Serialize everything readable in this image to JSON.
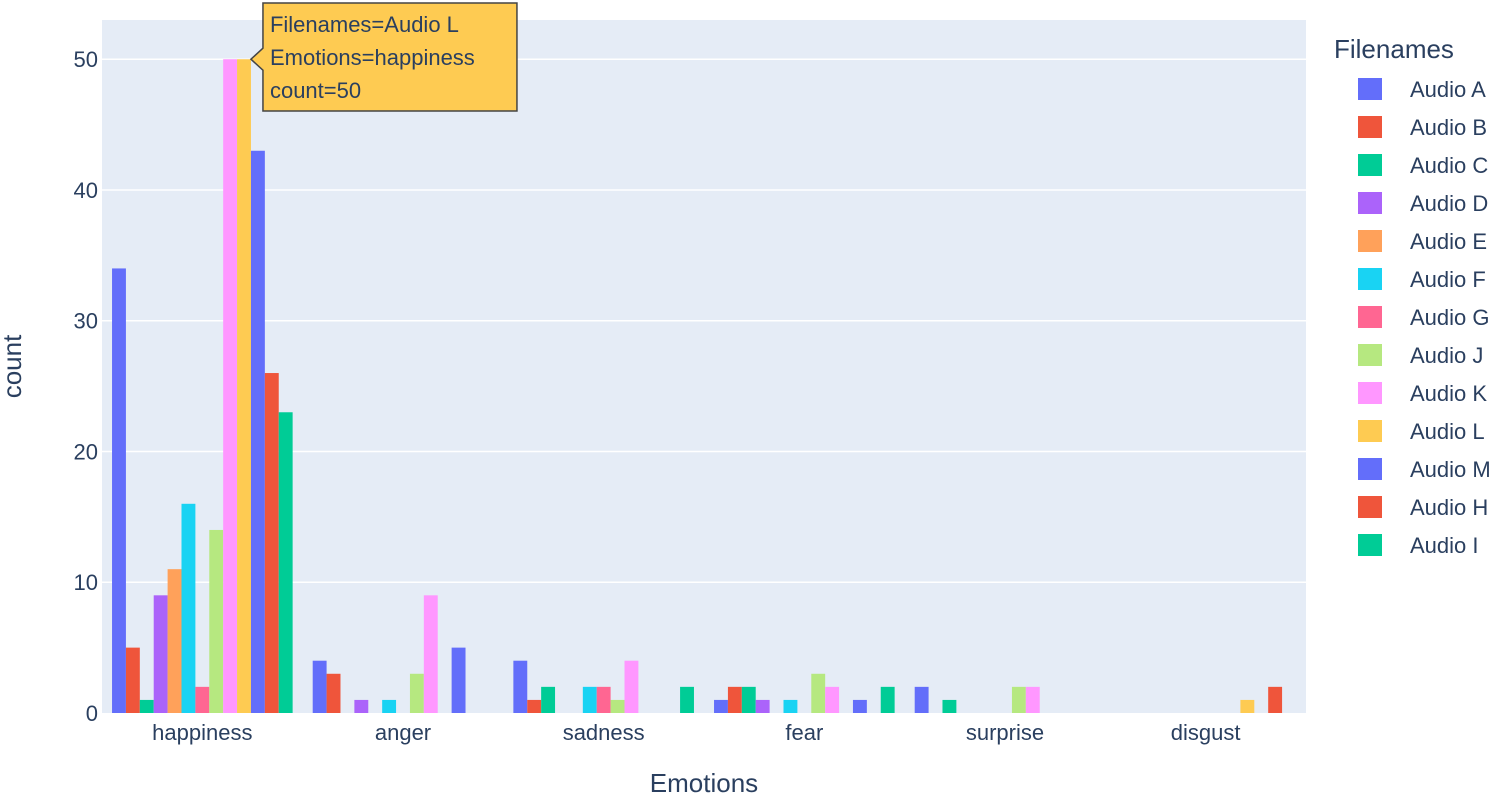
{
  "chart_data": {
    "type": "bar",
    "barmode": "group",
    "xlabel": "Emotions",
    "ylabel": "count",
    "ylim": [
      0,
      53
    ],
    "yticks": [
      0,
      10,
      20,
      30,
      40,
      50
    ],
    "grid": true,
    "legend_title": "Filenames",
    "legend_placement": "right",
    "categories": [
      "happiness",
      "anger",
      "sadness",
      "fear",
      "surprise",
      "disgust"
    ],
    "series": [
      {
        "name": "Audio A",
        "color": "#636efa",
        "values": [
          34,
          4,
          4,
          1,
          2,
          0
        ]
      },
      {
        "name": "Audio B",
        "color": "#EF553B",
        "values": [
          5,
          3,
          1,
          2,
          0,
          0
        ]
      },
      {
        "name": "Audio C",
        "color": "#00cc96",
        "values": [
          1,
          0,
          2,
          2,
          1,
          0
        ]
      },
      {
        "name": "Audio D",
        "color": "#ab63fa",
        "values": [
          9,
          1,
          0,
          1,
          0,
          0
        ]
      },
      {
        "name": "Audio E",
        "color": "#FFA15A",
        "values": [
          11,
          0,
          0,
          0,
          0,
          0
        ]
      },
      {
        "name": "Audio F",
        "color": "#19d3f3",
        "values": [
          16,
          1,
          2,
          1,
          0,
          0
        ]
      },
      {
        "name": "Audio G",
        "color": "#FF6692",
        "values": [
          2,
          0,
          2,
          0,
          0,
          0
        ]
      },
      {
        "name": "Audio J",
        "color": "#B6E880",
        "values": [
          14,
          3,
          1,
          3,
          2,
          0
        ]
      },
      {
        "name": "Audio K",
        "color": "#FF97FF",
        "values": [
          50,
          9,
          4,
          2,
          2,
          0
        ]
      },
      {
        "name": "Audio L",
        "color": "#FECB52",
        "values": [
          50,
          0,
          0,
          0,
          0,
          1
        ]
      },
      {
        "name": "Audio M",
        "color": "#636efa",
        "values": [
          43,
          5,
          0,
          1,
          0,
          0
        ]
      },
      {
        "name": "Audio H",
        "color": "#EF553B",
        "values": [
          26,
          0,
          0,
          0,
          0,
          2
        ]
      },
      {
        "name": "Audio I",
        "color": "#00cc96",
        "values": [
          23,
          0,
          2,
          2,
          0,
          0
        ]
      }
    ]
  },
  "tooltip": {
    "lines": [
      "Filenames=Audio L",
      "Emotions=happiness",
      "count=50"
    ],
    "series_index": 9,
    "category_index": 0,
    "background": "#FECB52"
  },
  "colors": {
    "plot_background": "#E5ECF6",
    "grid": "#ffffff",
    "text": "#2a3f5f"
  }
}
